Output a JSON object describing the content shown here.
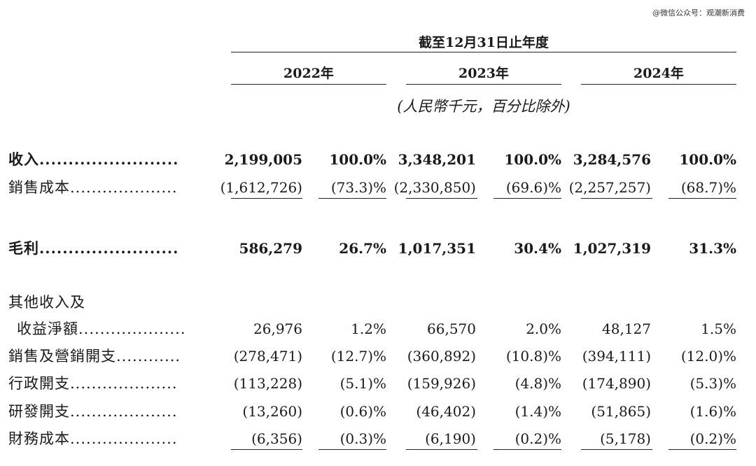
{
  "watermark": "@微信公众号：观潮新消费",
  "header": {
    "period": "截至12月31日止年度",
    "years": [
      "2022年",
      "2023年",
      "2024年"
    ],
    "unit_note": "(人民幣千元，百分比除外)"
  },
  "rows": [
    {
      "label": "收入",
      "dots": "........................",
      "bold": true,
      "values": [
        "2,199,005",
        "100.0%",
        "3,348,201",
        "100.0%",
        "3,284,576",
        "100.0%"
      ]
    },
    {
      "label": "銷售成本",
      "dots": "....................",
      "bold": false,
      "values": [
        "(1,612,726)",
        "(73.3)%",
        "(2,330,850)",
        "(69.6)%",
        "(2,257,257)",
        "(68.7)%"
      ]
    },
    {
      "label": "毛利",
      "dots": "........................",
      "bold": true,
      "values": [
        "586,279",
        "26.7%",
        "1,017,351",
        "30.4%",
        "1,027,319",
        "31.3%"
      ]
    },
    {
      "label": "其他收入及",
      "dots": "",
      "bold": false,
      "values": [
        "",
        "",
        "",
        "",
        "",
        ""
      ]
    },
    {
      "label": "收益淨額",
      "dots": "....................",
      "bold": false,
      "values": [
        "26,976",
        "1.2%",
        "66,570",
        "2.0%",
        "48,127",
        "1.5%"
      ]
    },
    {
      "label": "銷售及營銷開支",
      "dots": "............",
      "bold": false,
      "values": [
        "(278,471)",
        "(12.7)%",
        "(360,892)",
        "(10.8)%",
        "(394,111)",
        "(12.0)%"
      ]
    },
    {
      "label": "行政開支",
      "dots": "....................",
      "bold": false,
      "values": [
        "(113,228)",
        "(5.1)%",
        "(159,926)",
        "(4.8)%",
        "(174,890)",
        "(5.3)%"
      ]
    },
    {
      "label": "研發開支",
      "dots": "....................",
      "bold": false,
      "values": [
        "(13,260)",
        "(0.6)%",
        "(46,402)",
        "(1.4)%",
        "(51,865)",
        "(1.6)%"
      ]
    },
    {
      "label": "財務成本",
      "dots": "....................",
      "bold": false,
      "values": [
        "(6,356)",
        "(0.3)%",
        "(6,190)",
        "(0.2)%",
        "(5,178)",
        "(0.2)%"
      ]
    }
  ]
}
